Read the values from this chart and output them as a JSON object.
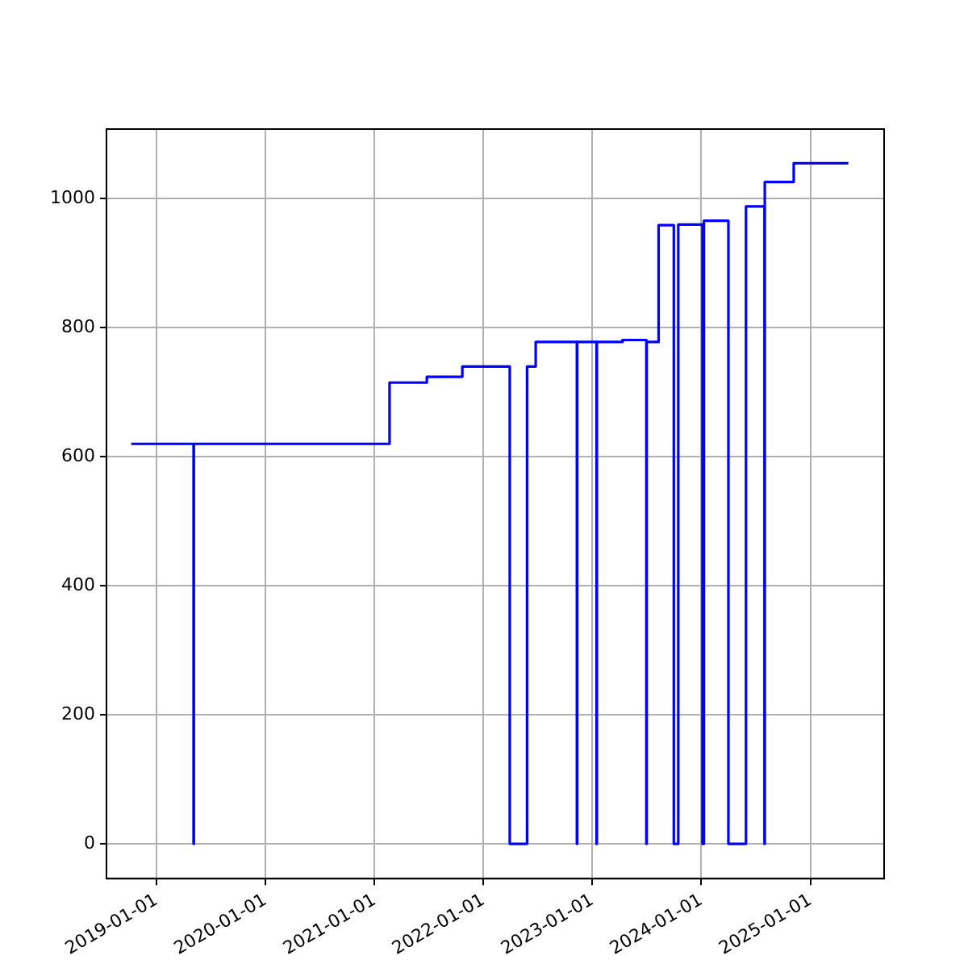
{
  "chart_data": {
    "type": "step",
    "grid": true,
    "xlim": [
      "2018-07-17",
      "2025-09-05"
    ],
    "ylim": [
      -54,
      1108
    ],
    "xticks": [
      "2019-01-01",
      "2020-01-01",
      "2021-01-01",
      "2022-01-01",
      "2023-01-01",
      "2024-01-01",
      "2025-01-01"
    ],
    "yticks": [
      0,
      200,
      400,
      600,
      800,
      1000
    ],
    "series": [
      {
        "color": "#0000ff",
        "x": [
          "2018-10-08",
          "2019-05-05",
          "2019-05-06",
          "2021-02-20",
          "2021-06-25",
          "2021-10-22",
          "2022-03-30",
          "2022-05-27",
          "2022-06-25",
          "2022-11-10",
          "2022-11-11",
          "2023-01-15",
          "2023-01-16",
          "2023-04-12",
          "2023-07-01",
          "2023-07-02",
          "2023-08-11",
          "2023-10-01",
          "2023-10-16",
          "2024-01-05",
          "2024-01-10",
          "2024-04-01",
          "2024-05-30",
          "2024-07-31",
          "2024-08-01",
          "2024-11-06",
          "2025-05-08"
        ],
        "values": [
          620,
          0,
          620,
          715,
          724,
          740,
          0,
          740,
          778,
          0,
          778,
          0,
          778,
          781,
          0,
          778,
          959,
          0,
          960,
          0,
          966,
          0,
          988,
          0,
          1026,
          1055,
          1055
        ]
      }
    ]
  }
}
